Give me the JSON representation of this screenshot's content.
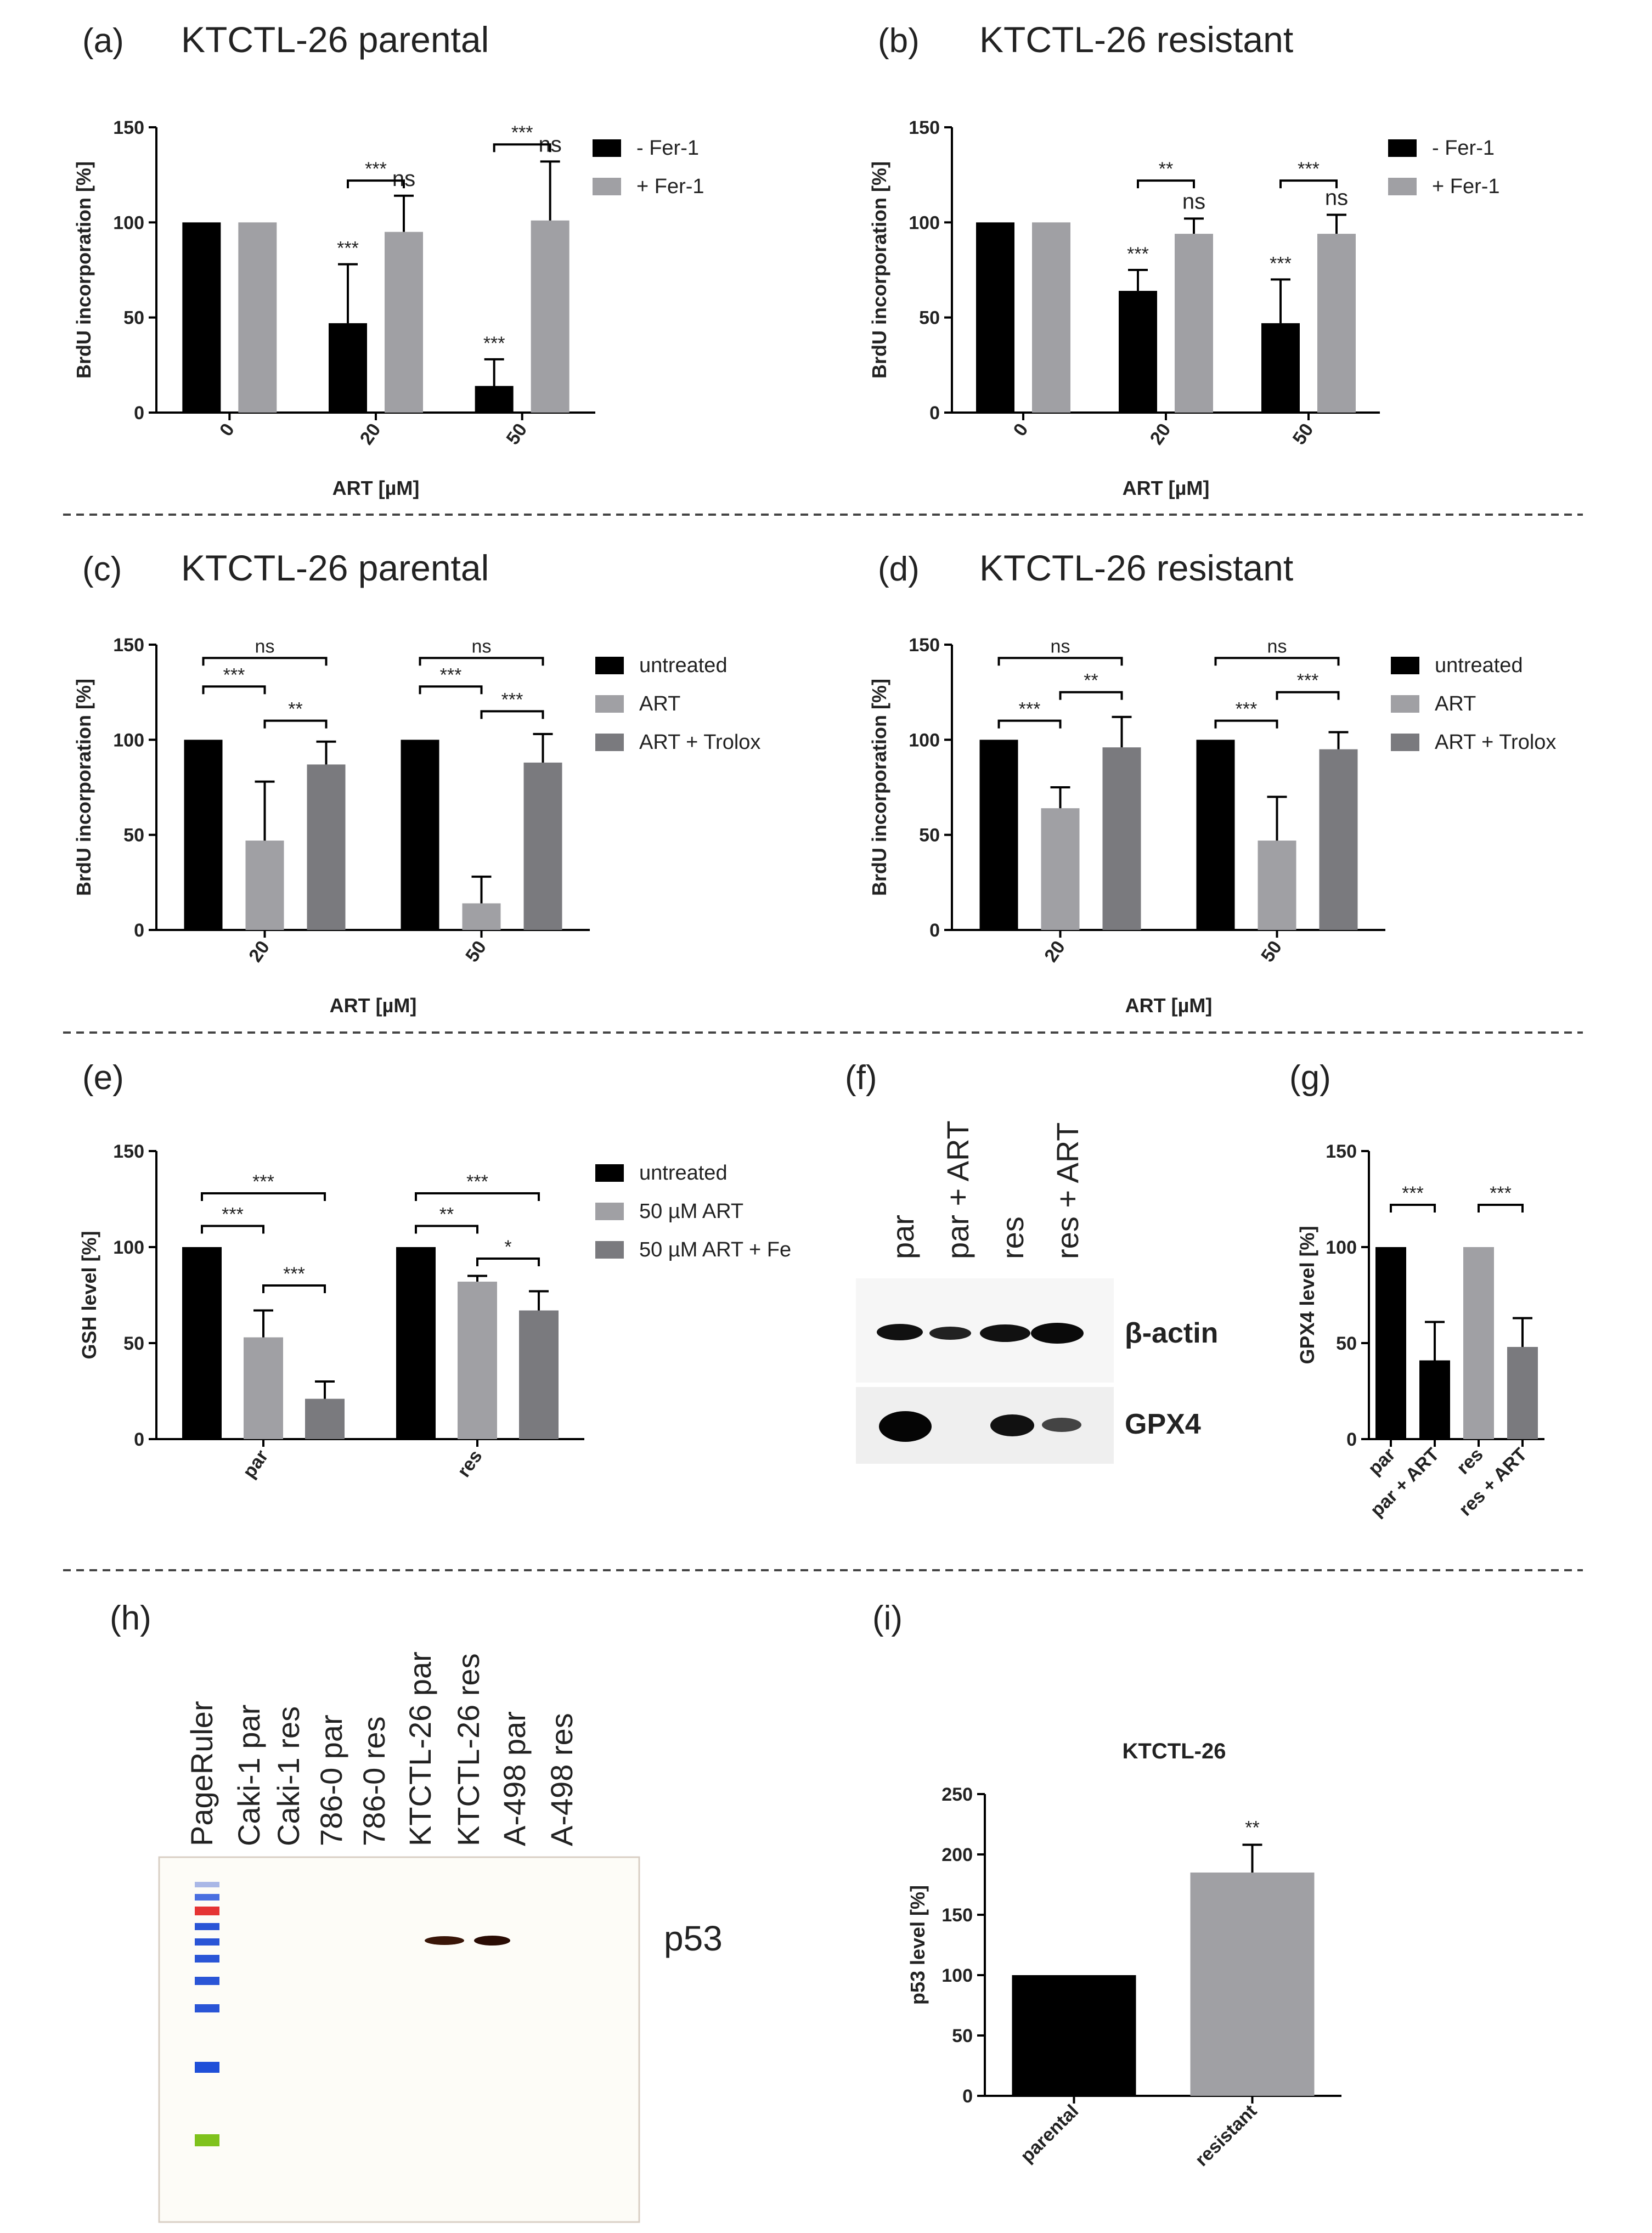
{
  "colors": {
    "black": "#000000",
    "gray": "#a0a0a4",
    "dark_gray": "#7a7a7e"
  },
  "chart_data": [
    {
      "id": "a",
      "panel_label": "(a)",
      "title": "KTCTL-26 parental",
      "type": "bar",
      "categories": [
        "0",
        "20",
        "50"
      ],
      "xlabel": "ART [µM]",
      "ylabel": "BrdU incorporation [%]",
      "ylim": [
        0,
        150
      ],
      "yticks": [
        0,
        50,
        100,
        150
      ],
      "series": [
        {
          "name": "- Fer-1",
          "color": "#000000",
          "values": [
            100,
            47,
            14
          ],
          "errors": [
            0,
            31,
            14
          ]
        },
        {
          "name": "+ Fer-1",
          "color": "#a0a0a4",
          "values": [
            100,
            95,
            101
          ],
          "errors": [
            0,
            19,
            31
          ]
        }
      ],
      "bar_marks": [
        null,
        {
          "s0": "***",
          "s1": "ns"
        },
        {
          "s0": "***",
          "s1": "ns"
        }
      ],
      "brackets": [
        {
          "from": [
            1,
            0
          ],
          "to": [
            1,
            1
          ],
          "y": 122,
          "text": "***"
        },
        {
          "from": [
            2,
            0
          ],
          "to": [
            2,
            1
          ],
          "y": 141,
          "text": "***"
        }
      ],
      "legend_position": "top-right"
    },
    {
      "id": "b",
      "panel_label": "(b)",
      "title": "KTCTL-26 resistant",
      "type": "bar",
      "categories": [
        "0",
        "20",
        "50"
      ],
      "xlabel": "ART [µM]",
      "ylabel": "BrdU incorporation [%]",
      "ylim": [
        0,
        150
      ],
      "yticks": [
        0,
        50,
        100,
        150
      ],
      "series": [
        {
          "name": "- Fer-1",
          "color": "#000000",
          "values": [
            100,
            64,
            47
          ],
          "errors": [
            0,
            11,
            23
          ]
        },
        {
          "name": "+ Fer-1",
          "color": "#a0a0a4",
          "values": [
            100,
            94,
            94
          ],
          "errors": [
            0,
            8,
            10
          ]
        }
      ],
      "bar_marks": [
        null,
        {
          "s0": "***",
          "s1": "ns"
        },
        {
          "s0": "***",
          "s1": "ns"
        }
      ],
      "brackets": [
        {
          "from": [
            1,
            0
          ],
          "to": [
            1,
            1
          ],
          "y": 122,
          "text": "**"
        },
        {
          "from": [
            2,
            0
          ],
          "to": [
            2,
            1
          ],
          "y": 122,
          "text": "***"
        }
      ],
      "legend_position": "top-right"
    },
    {
      "id": "c",
      "panel_label": "(c)",
      "title": "KTCTL-26 parental",
      "type": "bar",
      "categories": [
        "20",
        "50"
      ],
      "xlabel": "ART [µM]",
      "ylabel": "BrdU incorporation [%]",
      "ylim": [
        0,
        150
      ],
      "yticks": [
        0,
        50,
        100,
        150
      ],
      "series": [
        {
          "name": "untreated",
          "color": "#000000",
          "values": [
            100,
            100
          ],
          "errors": [
            0,
            0
          ]
        },
        {
          "name": "ART",
          "color": "#a0a0a4",
          "values": [
            47,
            14
          ],
          "errors": [
            31,
            14
          ]
        },
        {
          "name": "ART + Trolox",
          "color": "#7a7a7e",
          "values": [
            87,
            88
          ],
          "errors": [
            12,
            15
          ]
        }
      ],
      "bar_marks": [],
      "brackets": [
        {
          "from": [
            0,
            0
          ],
          "to": [
            0,
            2
          ],
          "y": 143,
          "text": "ns"
        },
        {
          "from": [
            0,
            0
          ],
          "to": [
            0,
            1
          ],
          "y": 128,
          "text": "***"
        },
        {
          "from": [
            0,
            1
          ],
          "to": [
            0,
            2
          ],
          "y": 110,
          "text": "**"
        },
        {
          "from": [
            1,
            0
          ],
          "to": [
            1,
            2
          ],
          "y": 143,
          "text": "ns"
        },
        {
          "from": [
            1,
            0
          ],
          "to": [
            1,
            1
          ],
          "y": 128,
          "text": "***"
        },
        {
          "from": [
            1,
            1
          ],
          "to": [
            1,
            2
          ],
          "y": 115,
          "text": "***"
        }
      ],
      "legend_position": "top-right"
    },
    {
      "id": "d",
      "panel_label": "(d)",
      "title": "KTCTL-26 resistant",
      "type": "bar",
      "categories": [
        "20",
        "50"
      ],
      "xlabel": "ART [µM]",
      "ylabel": "BrdU incorporation [%]",
      "ylim": [
        0,
        150
      ],
      "yticks": [
        0,
        50,
        100,
        150
      ],
      "series": [
        {
          "name": "untreated",
          "color": "#000000",
          "values": [
            100,
            100
          ],
          "errors": [
            0,
            0
          ]
        },
        {
          "name": "ART",
          "color": "#a0a0a4",
          "values": [
            64,
            47
          ],
          "errors": [
            11,
            23
          ]
        },
        {
          "name": "ART + Trolox",
          "color": "#7a7a7e",
          "values": [
            96,
            95
          ],
          "errors": [
            16,
            9
          ]
        }
      ],
      "bar_marks": [],
      "brackets": [
        {
          "from": [
            0,
            0
          ],
          "to": [
            0,
            2
          ],
          "y": 143,
          "text": "ns"
        },
        {
          "from": [
            0,
            0
          ],
          "to": [
            0,
            1
          ],
          "y": 110,
          "text": "***"
        },
        {
          "from": [
            0,
            1
          ],
          "to": [
            0,
            2
          ],
          "y": 125,
          "text": "**"
        },
        {
          "from": [
            1,
            0
          ],
          "to": [
            1,
            2
          ],
          "y": 143,
          "text": "ns"
        },
        {
          "from": [
            1,
            0
          ],
          "to": [
            1,
            1
          ],
          "y": 110,
          "text": "***"
        },
        {
          "from": [
            1,
            1
          ],
          "to": [
            1,
            2
          ],
          "y": 125,
          "text": "***"
        }
      ],
      "legend_position": "top-right"
    },
    {
      "id": "e",
      "panel_label": "(e)",
      "title": "",
      "type": "bar",
      "categories": [
        "par",
        "res"
      ],
      "xlabel": "",
      "ylabel": "GSH level [%]",
      "ylim": [
        0,
        150
      ],
      "yticks": [
        0,
        50,
        100,
        150
      ],
      "series": [
        {
          "name": "untreated",
          "color": "#000000",
          "values": [
            100,
            100
          ],
          "errors": [
            0,
            0
          ]
        },
        {
          "name": "50 µM ART",
          "color": "#a0a0a4",
          "values": [
            53,
            82
          ],
          "errors": [
            14,
            3
          ]
        },
        {
          "name": "50 µM ART + Fe",
          "color": "#7a7a7e",
          "values": [
            21,
            67
          ],
          "errors": [
            9,
            10
          ]
        }
      ],
      "bar_marks": [],
      "brackets": [
        {
          "from": [
            0,
            0
          ],
          "to": [
            0,
            2
          ],
          "y": 128,
          "text": "***"
        },
        {
          "from": [
            0,
            0
          ],
          "to": [
            0,
            1
          ],
          "y": 111,
          "text": "***"
        },
        {
          "from": [
            0,
            1
          ],
          "to": [
            0,
            2
          ],
          "y": 80,
          "text": "***"
        },
        {
          "from": [
            1,
            0
          ],
          "to": [
            1,
            2
          ],
          "y": 128,
          "text": "***"
        },
        {
          "from": [
            1,
            0
          ],
          "to": [
            1,
            1
          ],
          "y": 111,
          "text": "**"
        },
        {
          "from": [
            1,
            1
          ],
          "to": [
            1,
            2
          ],
          "y": 94,
          "text": "*"
        }
      ],
      "legend_position": "top-right"
    },
    {
      "id": "g",
      "panel_label": "(g)",
      "title": "",
      "type": "bar",
      "categories": [
        "par",
        "par + ART",
        "res",
        "res + ART"
      ],
      "xlabel": "",
      "ylabel": "GPX4 level [%]",
      "ylim": [
        0,
        150
      ],
      "yticks": [
        0,
        50,
        100,
        150
      ],
      "values": [
        100,
        41,
        100,
        48
      ],
      "errors": [
        0,
        20,
        0,
        15
      ],
      "colors": [
        "#000000",
        "#000000",
        "#a0a0a4",
        "#7a7a7e"
      ],
      "brackets": [
        {
          "from": 0,
          "to": 1,
          "y": 122,
          "text": "***"
        },
        {
          "from": 2,
          "to": 3,
          "y": 122,
          "text": "***"
        }
      ]
    },
    {
      "id": "i",
      "panel_label": "(i)",
      "title": "KTCTL-26",
      "type": "bar",
      "categories": [
        "parental",
        "resistant"
      ],
      "xlabel": "",
      "ylabel": "p53 level [%]",
      "ylim": [
        0,
        250
      ],
      "yticks": [
        0,
        50,
        100,
        150,
        200,
        250
      ],
      "values": [
        100,
        185
      ],
      "errors": [
        0,
        23
      ],
      "colors": [
        "#000000",
        "#a0a0a4"
      ],
      "bar_marks": [
        "",
        "**"
      ]
    }
  ],
  "blot_f": {
    "panel_label": "(f)",
    "lanes": [
      "par",
      "par + ART",
      "res",
      "res + ART"
    ],
    "bands": [
      "β-actin",
      "GPX4"
    ]
  },
  "blot_h": {
    "panel_label": "(h)",
    "lanes": [
      "PageRuler",
      "Caki-1 par",
      "Caki-1 res",
      "786-0 par",
      "786-0 res",
      "KTCTL-26 par",
      "KTCTL-26 res",
      "A-498 par",
      "A-498 res"
    ],
    "band_label": "p53"
  }
}
